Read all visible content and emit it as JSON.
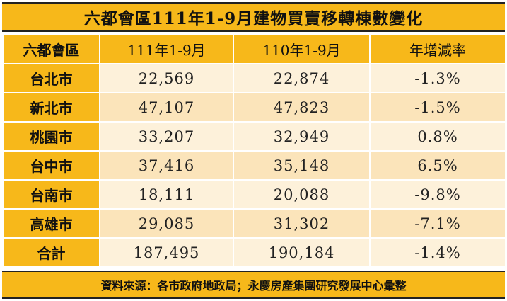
{
  "chart_data": {
    "type": "table",
    "title": "六都會區111年1-9月建物買賣移轉棟數變化",
    "columns": [
      "六都會區",
      "111年1-9月",
      "110年1-9月",
      "年增減率"
    ],
    "rows": [
      {
        "region": "台北市",
        "y111": "22,569",
        "y110": "22,874",
        "change": "-1.3%"
      },
      {
        "region": "新北市",
        "y111": "47,107",
        "y110": "47,823",
        "change": "-1.5%"
      },
      {
        "region": "桃園市",
        "y111": "33,207",
        "y110": "32,949",
        "change": "0.8%"
      },
      {
        "region": "台中市",
        "y111": "37,416",
        "y110": "35,148",
        "change": "6.5%"
      },
      {
        "region": "台南市",
        "y111": "18,111",
        "y110": "20,088",
        "change": "-9.8%"
      },
      {
        "region": "高雄市",
        "y111": "29,085",
        "y110": "31,302",
        "change": "-7.1%"
      },
      {
        "region": "合計",
        "y111": "187,495",
        "y110": "190,184",
        "change": "-1.4%"
      }
    ],
    "source": "資料來源：各市政府地政局；永慶房產集團研究發展中心彙整"
  },
  "colors": {
    "header": "#f7b81a",
    "row_light": "#fdf1da",
    "row_dark": "#fbe4ba"
  }
}
